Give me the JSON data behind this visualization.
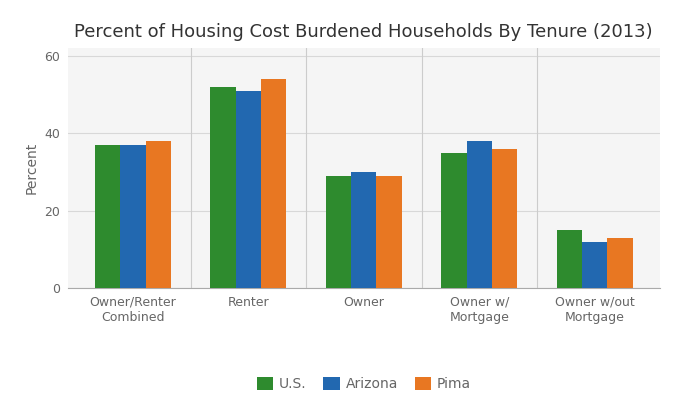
{
  "title": "Percent of Housing Cost Burdened Households By Tenure (2013)",
  "categories": [
    "Owner/Renter\nCombined",
    "Renter",
    "Owner",
    "Owner w/\nMortgage",
    "Owner w/out\nMortgage"
  ],
  "series": {
    "U.S.": [
      37,
      52,
      29,
      35,
      15
    ],
    "Arizona": [
      37,
      51,
      30,
      38,
      12
    ],
    "Pima": [
      38,
      54,
      29,
      36,
      13
    ]
  },
  "colors": {
    "U.S.": "#2e8b2e",
    "Arizona": "#2268b0",
    "Pima": "#e87722"
  },
  "ylabel": "Percent",
  "ylim": [
    0,
    62
  ],
  "yticks": [
    0,
    20,
    40,
    60
  ],
  "legend_labels": [
    "U.S.",
    "Arizona",
    "Pima"
  ],
  "background_color": "#ffffff",
  "plot_bg_color": "#f5f5f5",
  "title_fontsize": 13,
  "axis_label_fontsize": 10,
  "tick_fontsize": 9,
  "legend_fontsize": 10,
  "bar_width": 0.22,
  "grid_color": "#d8d8d8",
  "text_color": "#666666"
}
